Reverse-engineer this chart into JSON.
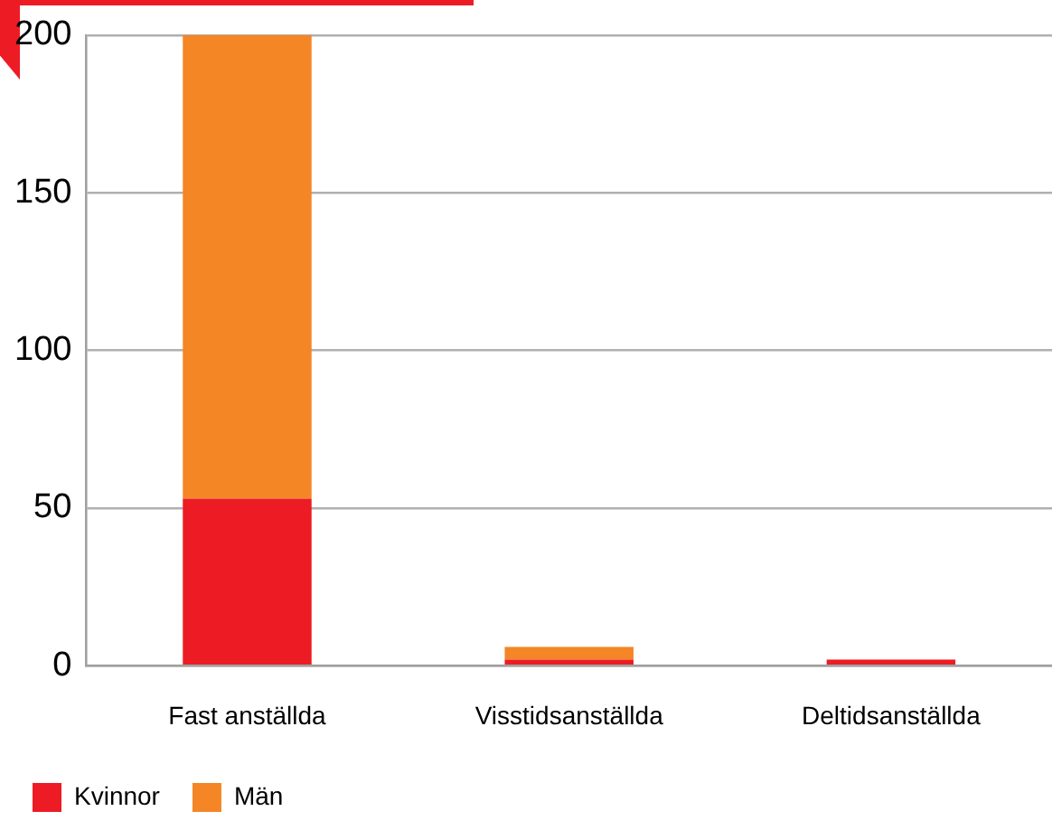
{
  "chart_data": {
    "type": "bar",
    "stacked": true,
    "categories": [
      "Fast anställda",
      "Visstidsanställda",
      "Deltidsanställda"
    ],
    "series": [
      {
        "name": "Kvinnor",
        "color": "#ed1c24",
        "values": [
          53,
          2,
          2
        ]
      },
      {
        "name": "Män",
        "color": "#f48625",
        "values": [
          147,
          4,
          0
        ]
      }
    ],
    "ylim": [
      0,
      200
    ],
    "yticks": [
      0,
      50,
      100,
      150,
      200
    ],
    "grid": "y",
    "legend": "bottom left"
  }
}
